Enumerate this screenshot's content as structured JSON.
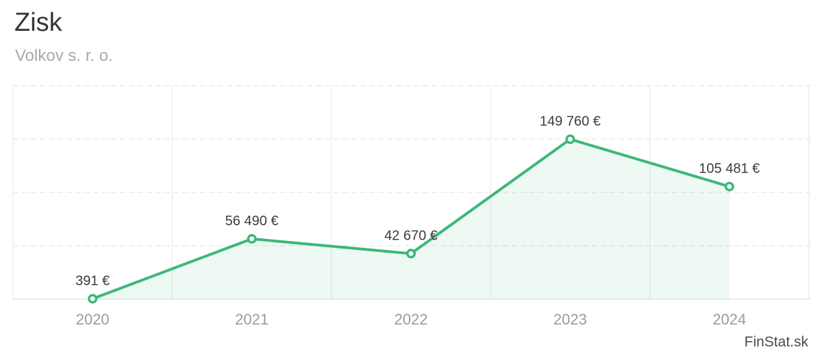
{
  "header": {
    "title": "Zisk",
    "subtitle": "Volkov s. r. o."
  },
  "watermark": {
    "label": "FinStat.sk"
  },
  "colors": {
    "line": "#3cb878",
    "marker_fill": "#ffffff",
    "area": "rgba(61,184,126,0.09)",
    "grid_dashed": "#e0e0e0",
    "grid_vertical": "#e6e6e6",
    "axis_line": "#d8d8d8",
    "point_label": "#3c3c3c",
    "tick_label": "#9b9b9b",
    "title": "#373737",
    "subtitle": "#a9a9a9",
    "watermark": "#4b4b4b"
  },
  "chart_data": {
    "type": "line",
    "title": "Zisk",
    "subtitle": "Volkov s. r. o.",
    "categories": [
      "2020",
      "2021",
      "2022",
      "2023",
      "2024"
    ],
    "series": [
      {
        "name": "Zisk",
        "values": [
          391,
          56490,
          42670,
          149760,
          105481
        ]
      }
    ],
    "point_labels": [
      "391 €",
      "56 490 €",
      "42 670 €",
      "149 760 €",
      "105 481 €"
    ],
    "unit": "€",
    "xlabel": "",
    "ylabel": "",
    "ylim": [
      0,
      200000
    ],
    "y_grid_step": 50000,
    "grid": "horizontal dashed every 50000, solid vertical lines at category boundaries, solid left/right plot borders, solid bottom axis",
    "legend_position": "none",
    "area_fill": true,
    "markers": "open circles on green line",
    "watermark": "FinStat.sk"
  }
}
